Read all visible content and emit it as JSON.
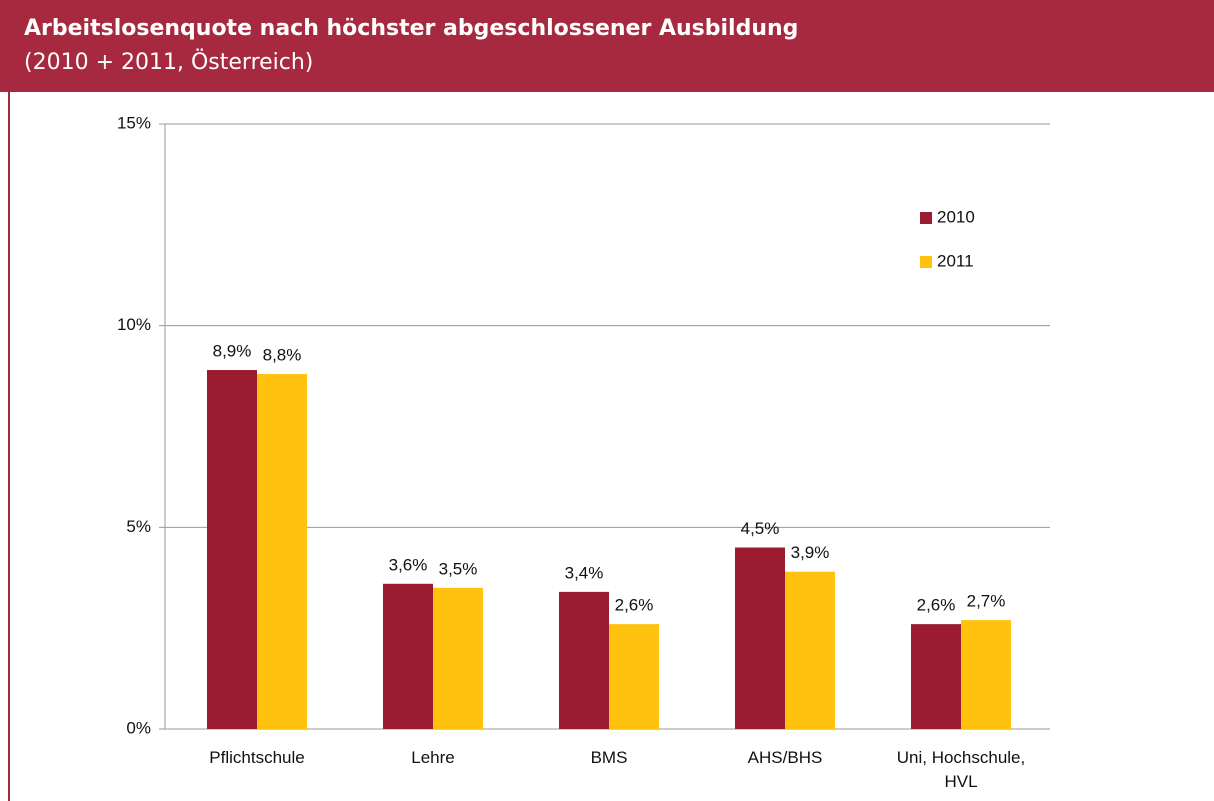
{
  "header": {
    "title": "Arbeitslosenquote nach höchster abgeschlossener Ausbildung",
    "subtitle": "(2010 + 2011, Österreich)"
  },
  "chart_data": {
    "type": "bar",
    "categories": [
      "Pflichtschule",
      "Lehre",
      "BMS",
      "AHS/BHS",
      "Uni, Hochschule, HVL"
    ],
    "series": [
      {
        "name": "2010",
        "color": "#9b1b30",
        "values": [
          8.9,
          3.6,
          3.4,
          4.5,
          2.6
        ],
        "value_labels": [
          "8,9%",
          "3,6%",
          "3,4%",
          "4,5%",
          "2,6%"
        ]
      },
      {
        "name": "2011",
        "color": "#ffc20e",
        "values": [
          8.8,
          3.5,
          2.6,
          3.9,
          2.7
        ],
        "value_labels": [
          "8,8%",
          "3,5%",
          "2,6%",
          "3,9%",
          "2,7%"
        ]
      }
    ],
    "ylim": [
      0,
      15
    ],
    "yticks": [
      {
        "value": 0,
        "label": "0%"
      },
      {
        "value": 5,
        "label": "5%"
      },
      {
        "value": 10,
        "label": "10%"
      },
      {
        "value": 15,
        "label": "15%"
      }
    ],
    "grid": true,
    "legend": "upper right"
  }
}
